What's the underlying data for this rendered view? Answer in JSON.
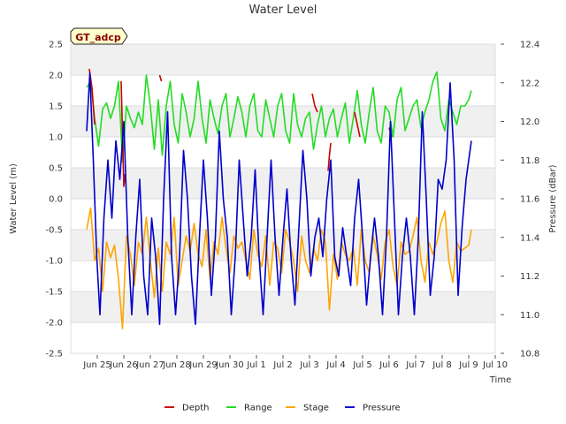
{
  "chart_data": {
    "type": "line",
    "title": "Water Level",
    "site_label": "GT_adcp",
    "xlabel": "Time",
    "ylabel": "Water Level (m)",
    "y2label": "Pressure (dBar)",
    "ylim": [
      -2.5,
      2.5
    ],
    "y2lim": [
      10.8,
      12.4
    ],
    "xlim": [
      0,
      16
    ],
    "yticks": [
      -2.5,
      -2.0,
      -1.5,
      -1.0,
      -0.5,
      0.0,
      0.5,
      1.0,
      1.5,
      2.0,
      2.5
    ],
    "ytick_labels": [
      "-2.5",
      "-2.0",
      "-1.5",
      "-1.0",
      "-0.5",
      "0.0",
      "0.5",
      "1.0",
      "1.5",
      "2.0",
      "2.5"
    ],
    "y2ticks": [
      10.8,
      11.0,
      11.2,
      11.4,
      11.6,
      11.8,
      12.0,
      12.2,
      12.4
    ],
    "y2tick_labels": [
      "10.8",
      "11.0",
      "11.2",
      "11.4",
      "11.6",
      "11.8",
      "12.0",
      "12.2",
      "12.4"
    ],
    "xtick_labels": [
      "Jun 25",
      "Jun 26",
      "Jun 27",
      "Jun 28",
      "Jun 29",
      "Jun 30",
      "Jul 1",
      "Jul 2",
      "Jul 3",
      "Jul 4",
      "Jul 5",
      "Jul 6",
      "Jul 7",
      "Jul 8",
      "Jul 9",
      "Jul 10"
    ],
    "legend": [
      {
        "name": "Depth",
        "color": "#cc0000"
      },
      {
        "name": "Range",
        "color": "#22dd22"
      },
      {
        "name": "Stage",
        "color": "#ffa500"
      },
      {
        "name": "Pressure",
        "color": "#0000cc"
      }
    ],
    "series": [
      {
        "name": "Range",
        "color": "#22dd22",
        "axis": "left",
        "x": [
          0.6,
          0.75,
          0.9,
          1.05,
          1.2,
          1.35,
          1.5,
          1.65,
          1.8,
          1.95,
          2.1,
          2.25,
          2.4,
          2.55,
          2.7,
          2.85,
          3.0,
          3.15,
          3.3,
          3.45,
          3.6,
          3.75,
          3.9,
          4.05,
          4.2,
          4.35,
          4.5,
          4.65,
          4.8,
          4.95,
          5.1,
          5.25,
          5.4,
          5.55,
          5.7,
          5.85,
          6.0,
          6.15,
          6.3,
          6.45,
          6.6,
          6.75,
          6.9,
          7.05,
          7.2,
          7.35,
          7.5,
          7.65,
          7.8,
          7.95,
          8.1,
          8.25,
          8.4,
          8.55,
          8.7,
          8.85,
          9.0,
          9.15,
          9.3,
          9.45,
          9.6,
          9.75,
          9.9,
          10.05,
          10.2,
          10.35,
          10.5,
          10.65,
          10.8,
          10.95,
          11.1,
          11.25,
          11.4,
          11.55,
          11.7,
          11.85,
          12.0,
          12.15,
          12.3,
          12.45,
          12.6,
          12.75,
          12.9,
          13.05,
          13.2,
          13.35,
          13.5,
          13.65,
          13.8,
          13.95,
          14.1,
          14.25,
          14.4,
          14.55,
          14.7,
          14.85,
          15.0,
          15.1
        ],
        "values": [
          1.8,
          1.9,
          1.3,
          0.85,
          1.45,
          1.55,
          1.3,
          1.5,
          1.9,
          0.6,
          1.5,
          1.3,
          1.15,
          1.4,
          1.2,
          2.0,
          1.5,
          0.8,
          1.6,
          0.7,
          1.5,
          1.9,
          1.2,
          0.9,
          1.7,
          1.4,
          1.0,
          1.3,
          1.9,
          1.3,
          0.9,
          1.6,
          1.3,
          1.05,
          1.5,
          1.7,
          1.0,
          1.3,
          1.65,
          1.4,
          1.0,
          1.5,
          1.7,
          1.1,
          1.0,
          1.6,
          1.3,
          1.0,
          1.5,
          1.7,
          1.1,
          0.9,
          1.7,
          1.2,
          1.0,
          1.3,
          1.4,
          0.8,
          1.2,
          1.5,
          1.0,
          1.3,
          1.45,
          1.0,
          1.3,
          1.55,
          0.9,
          1.3,
          1.75,
          1.2,
          0.9,
          1.4,
          1.8,
          1.1,
          0.9,
          1.5,
          1.4,
          1.0,
          1.6,
          1.8,
          1.1,
          1.3,
          1.5,
          1.6,
          1.15,
          1.4,
          1.6,
          1.9,
          2.05,
          1.3,
          1.1,
          1.6,
          1.4,
          1.2,
          1.5,
          1.5,
          1.6,
          1.75
        ]
      },
      {
        "name": "Depth",
        "color": "#cc0000",
        "axis": "left",
        "x": [
          0.7,
          0.8,
          0.9,
          1.9,
          2.0,
          2.05,
          3.35,
          3.42,
          9.1,
          9.2,
          9.3,
          9.7,
          9.75,
          9.8,
          10.7,
          10.8,
          10.9,
          12.0,
          12.1
        ],
        "values": [
          2.1,
          1.8,
          1.2,
          1.9,
          0.2,
          0.4,
          2.0,
          1.9,
          1.7,
          1.5,
          1.4,
          0.45,
          0.7,
          0.9,
          1.4,
          1.2,
          1.0,
          1.15,
          1.0
        ]
      },
      {
        "name": "Stage",
        "color": "#ffa500",
        "axis": "left",
        "x": [
          0.6,
          0.75,
          0.9,
          1.05,
          1.2,
          1.35,
          1.5,
          1.65,
          1.8,
          1.95,
          2.1,
          2.25,
          2.4,
          2.55,
          2.7,
          2.85,
          3.0,
          3.15,
          3.3,
          3.45,
          3.6,
          3.75,
          3.9,
          4.05,
          4.2,
          4.35,
          4.5,
          4.65,
          4.8,
          4.95,
          5.1,
          5.25,
          5.4,
          5.55,
          5.7,
          5.85,
          6.0,
          6.15,
          6.3,
          6.45,
          6.6,
          6.75,
          6.9,
          7.05,
          7.2,
          7.35,
          7.5,
          7.65,
          7.8,
          7.95,
          8.1,
          8.25,
          8.4,
          8.55,
          8.7,
          8.85,
          9.0,
          9.15,
          9.3,
          9.45,
          9.6,
          9.75,
          9.9,
          10.05,
          10.2,
          10.35,
          10.5,
          10.65,
          10.8,
          10.95,
          11.1,
          11.25,
          11.4,
          11.55,
          11.7,
          11.85,
          12.0,
          12.15,
          12.3,
          12.45,
          12.6,
          12.75,
          12.9,
          13.05,
          13.2,
          13.35,
          13.5,
          13.65,
          13.8,
          13.95,
          14.1,
          14.25,
          14.4,
          14.55,
          14.7,
          14.85,
          15.0,
          15.1
        ],
        "values": [
          -0.5,
          -0.15,
          -1.0,
          -0.8,
          -1.5,
          -0.7,
          -0.95,
          -0.75,
          -1.3,
          -2.1,
          -0.6,
          -0.9,
          -1.4,
          -0.7,
          -0.9,
          -0.3,
          -1.0,
          -1.6,
          -0.8,
          -1.5,
          -0.7,
          -0.9,
          -0.3,
          -1.4,
          -1.0,
          -0.6,
          -0.85,
          -0.4,
          -0.9,
          -1.1,
          -0.5,
          -1.3,
          -0.7,
          -0.9,
          -0.3,
          -0.8,
          -1.2,
          -0.6,
          -0.8,
          -0.7,
          -1.0,
          -1.3,
          -0.5,
          -0.9,
          -1.1,
          -0.6,
          -1.4,
          -0.7,
          -0.8,
          -1.2,
          -0.5,
          -0.7,
          -1.0,
          -1.5,
          -0.6,
          -1.0,
          -1.2,
          -0.8,
          -1.0,
          -0.5,
          -0.7,
          -1.8,
          -0.9,
          -1.3,
          -0.7,
          -0.9,
          -1.0,
          -0.8,
          -1.4,
          -0.5,
          -1.0,
          -1.2,
          -0.6,
          -0.9,
          -1.3,
          -0.7,
          -0.5,
          -1.1,
          -1.4,
          -0.7,
          -0.9,
          -0.85,
          -0.6,
          -0.3,
          -1.0,
          -1.35,
          -0.7,
          -0.9,
          -0.7,
          -0.4,
          -0.2,
          -1.0,
          -1.35,
          -0.7,
          -0.85,
          -0.8,
          -0.75,
          -0.5
        ]
      },
      {
        "name": "Pressure",
        "color": "#0000cc",
        "axis": "right",
        "x": [
          0.6,
          0.72,
          0.85,
          0.98,
          1.1,
          1.25,
          1.4,
          1.55,
          1.7,
          1.85,
          2.0,
          2.15,
          2.3,
          2.45,
          2.6,
          2.75,
          2.9,
          3.05,
          3.2,
          3.35,
          3.5,
          3.65,
          3.8,
          3.95,
          4.1,
          4.25,
          4.4,
          4.55,
          4.7,
          4.85,
          5.0,
          5.15,
          5.3,
          5.45,
          5.6,
          5.75,
          5.9,
          6.05,
          6.2,
          6.35,
          6.5,
          6.65,
          6.8,
          6.95,
          7.1,
          7.25,
          7.4,
          7.55,
          7.7,
          7.85,
          8.0,
          8.15,
          8.3,
          8.45,
          8.6,
          8.75,
          8.9,
          9.05,
          9.2,
          9.35,
          9.5,
          9.65,
          9.8,
          9.95,
          10.1,
          10.25,
          10.4,
          10.55,
          10.7,
          10.85,
          11.0,
          11.15,
          11.3,
          11.45,
          11.6,
          11.75,
          11.9,
          12.05,
          12.2,
          12.35,
          12.5,
          12.65,
          12.8,
          12.95,
          13.1,
          13.25,
          13.4,
          13.55,
          13.7,
          13.85,
          14.0,
          14.15,
          14.3,
          14.45,
          14.6,
          14.75,
          14.9,
          15.1
        ],
        "values": [
          11.95,
          12.25,
          11.8,
          11.3,
          11.0,
          11.5,
          11.8,
          11.5,
          11.9,
          11.7,
          12.0,
          11.4,
          11.0,
          11.4,
          11.7,
          11.2,
          11.0,
          11.5,
          11.3,
          10.95,
          11.6,
          12.05,
          11.3,
          11.0,
          11.3,
          11.85,
          11.6,
          11.2,
          10.95,
          11.4,
          11.8,
          11.5,
          11.1,
          11.4,
          11.95,
          11.6,
          11.4,
          11.0,
          11.3,
          11.8,
          11.5,
          11.2,
          11.4,
          11.75,
          11.3,
          11.0,
          11.4,
          11.8,
          11.4,
          11.1,
          11.4,
          11.65,
          11.3,
          11.05,
          11.45,
          11.85,
          11.6,
          11.2,
          11.4,
          11.5,
          11.3,
          11.6,
          11.8,
          11.3,
          11.2,
          11.45,
          11.3,
          11.15,
          11.5,
          11.7,
          11.4,
          11.05,
          11.3,
          11.5,
          11.3,
          11.0,
          11.4,
          12.0,
          11.5,
          11.0,
          11.3,
          11.5,
          11.3,
          11.0,
          11.4,
          12.05,
          11.6,
          11.1,
          11.3,
          11.7,
          11.65,
          11.8,
          12.2,
          11.8,
          11.1,
          11.45,
          11.7,
          11.9
        ]
      }
    ]
  }
}
